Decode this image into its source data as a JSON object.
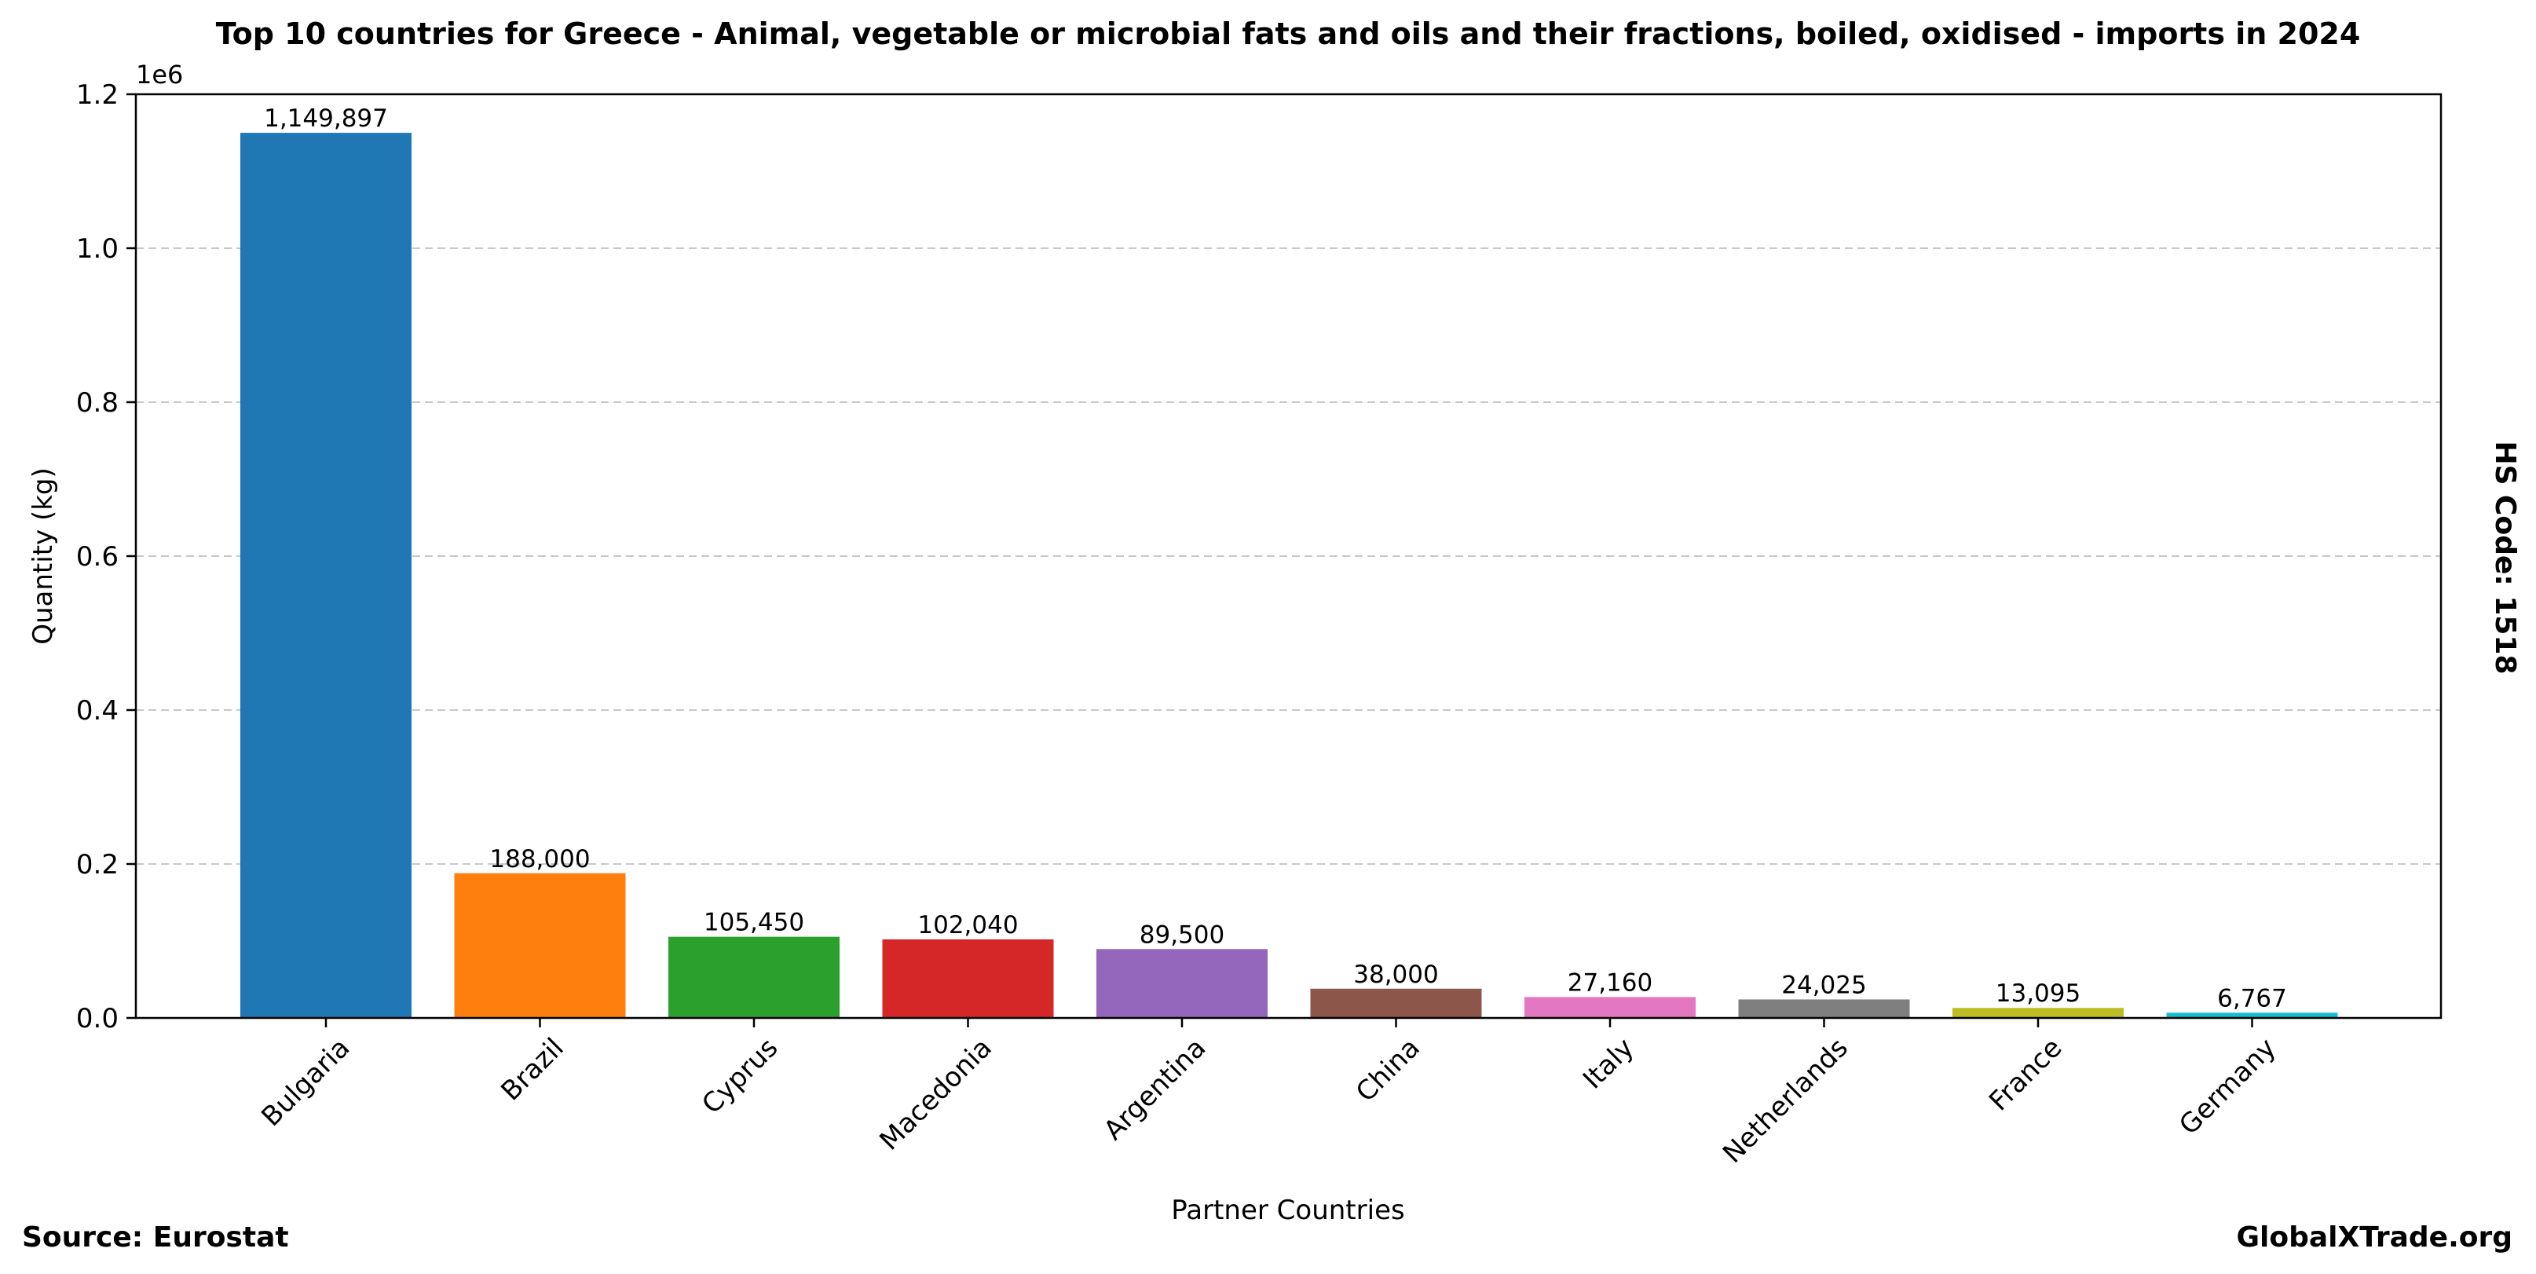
{
  "chart_data": {
    "type": "bar",
    "title": "Top 10 countries for Greece - Animal, vegetable or microbial fats and oils and their fractions, boiled, oxidised - imports in 2024",
    "xlabel": "Partner Countries",
    "ylabel": "Quantity (kg)",
    "y_offset_label": "1e6",
    "ylim": [
      0,
      1200000
    ],
    "yticks": [
      0,
      200000,
      400000,
      600000,
      800000,
      1000000,
      1200000
    ],
    "ytick_labels": [
      "0.0",
      "0.2",
      "0.4",
      "0.6",
      "0.8",
      "1.0",
      "1.2"
    ],
    "grid": "horizontal dashed",
    "categories": [
      "Bulgaria",
      "Brazil",
      "Cyprus",
      "Macedonia",
      "Argentina",
      "China",
      "Italy",
      "Netherlands",
      "France",
      "Germany"
    ],
    "values": [
      1149897,
      188000,
      105450,
      102040,
      89500,
      38000,
      27160,
      24025,
      13095,
      6767
    ],
    "value_labels": [
      "1,149,897",
      "188,000",
      "105,450",
      "102,040",
      "89,500",
      "38,000",
      "27,160",
      "24,025",
      "13,095",
      "6,767"
    ],
    "colors": [
      "#1f77b4",
      "#ff7f0e",
      "#2ca02c",
      "#d62728",
      "#9467bd",
      "#8c564b",
      "#e377c2",
      "#7f7f7f",
      "#bcbd22",
      "#17becf"
    ],
    "side_label": "HS Code: 1518"
  },
  "footer": {
    "source": "Source: Eurostat",
    "site": "GlobalXTrade.org"
  }
}
